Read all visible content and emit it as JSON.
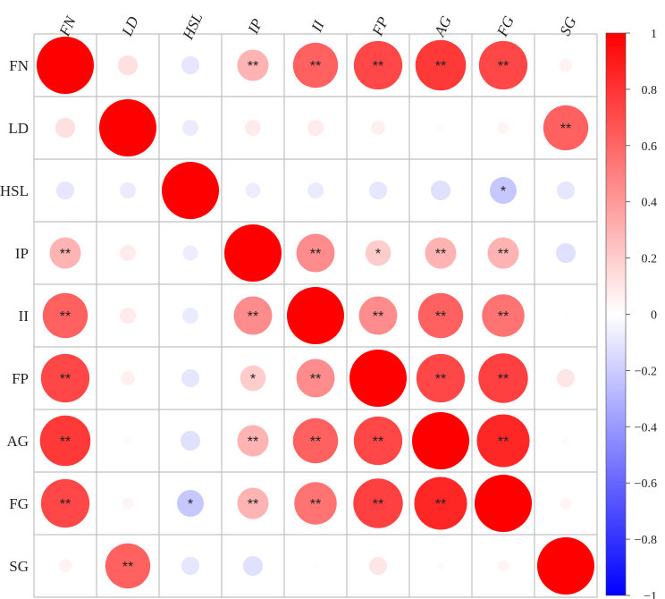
{
  "chart_data": {
    "type": "heatmap",
    "variables": [
      "FN",
      "LD",
      "HSL",
      "IP",
      "II",
      "FP",
      "AG",
      "FG",
      "SG"
    ],
    "matrix": [
      [
        1.0,
        0.12,
        -0.1,
        0.3,
        0.62,
        0.72,
        0.78,
        0.72,
        0.05
      ],
      [
        0.12,
        1.0,
        -0.08,
        0.08,
        0.08,
        0.06,
        0.02,
        0.04,
        0.62
      ],
      [
        -0.1,
        -0.08,
        1.0,
        -0.07,
        -0.08,
        -0.1,
        -0.12,
        -0.22,
        -0.1
      ],
      [
        0.3,
        0.08,
        -0.07,
        1.0,
        0.45,
        0.2,
        0.3,
        0.3,
        -0.12
      ],
      [
        0.62,
        0.08,
        -0.08,
        0.45,
        1.0,
        0.45,
        0.62,
        0.55,
        0.01
      ],
      [
        0.72,
        0.06,
        -0.1,
        0.2,
        0.45,
        1.0,
        0.72,
        0.75,
        0.1
      ],
      [
        0.78,
        0.02,
        -0.12,
        0.3,
        0.62,
        0.72,
        1.0,
        0.85,
        0.02
      ],
      [
        0.72,
        0.04,
        -0.22,
        0.3,
        0.55,
        0.75,
        0.85,
        1.0,
        0.04
      ],
      [
        0.05,
        0.62,
        -0.1,
        -0.12,
        0.01,
        0.1,
        0.02,
        0.04,
        1.0
      ]
    ],
    "significance": [
      [
        "",
        "",
        "",
        "**",
        "**",
        "**",
        "**",
        "**",
        ""
      ],
      [
        "",
        "",
        "",
        "",
        "",
        "",
        "",
        "",
        "**"
      ],
      [
        "",
        "",
        "",
        "",
        "",
        "",
        "",
        "*",
        ""
      ],
      [
        "**",
        "",
        "",
        "",
        "**",
        "*",
        "**",
        "**",
        ""
      ],
      [
        "**",
        "",
        "",
        "**",
        "",
        "**",
        "**",
        "**",
        ""
      ],
      [
        "**",
        "",
        "",
        "*",
        "**",
        "",
        "**",
        "**",
        ""
      ],
      [
        "**",
        "",
        "",
        "**",
        "**",
        "**",
        "",
        "**",
        ""
      ],
      [
        "**",
        "",
        "*",
        "**",
        "**",
        "**",
        "**",
        "",
        ""
      ],
      [
        "",
        "**",
        "",
        "",
        "",
        "",
        "",
        "",
        ""
      ]
    ],
    "colorbar": {
      "range": [
        -1,
        1
      ],
      "ticks": [
        "1",
        "0.8",
        "0.6",
        "0.4",
        "0.2",
        "0",
        "−0.2",
        "−0.4",
        "−0.6",
        "−0.8",
        "−1"
      ],
      "colors": {
        "negative": "#0000ff",
        "zero": "#ffffff",
        "positive": "#ff0000"
      }
    },
    "colors": {
      "grid": "#c0c0c0",
      "text": "#222222"
    }
  }
}
